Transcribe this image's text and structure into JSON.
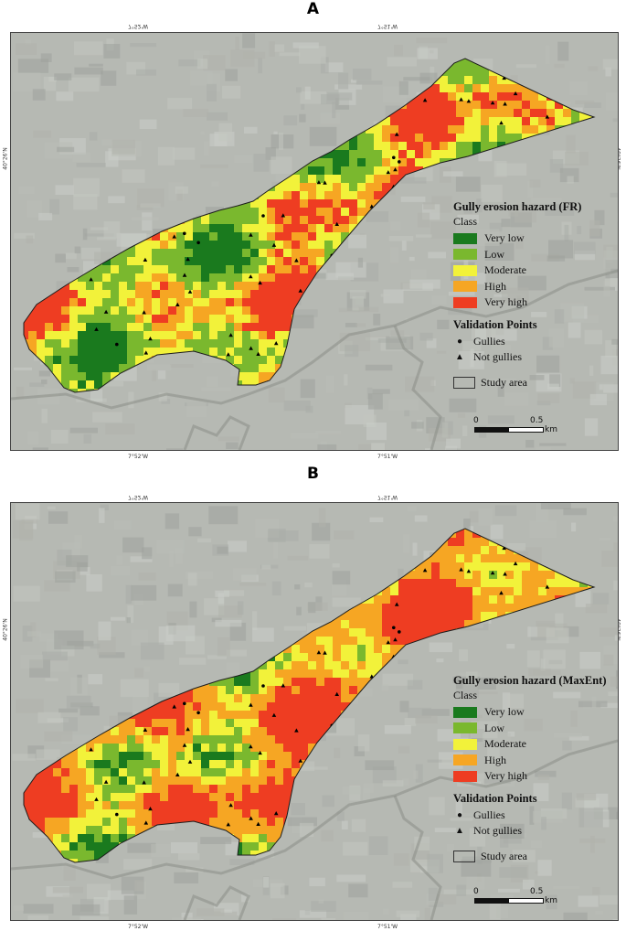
{
  "panels": [
    {
      "label": "A",
      "legend_title": "Gully erosion hazard (FR)",
      "seed": 7,
      "bias": [
        0.3,
        0.26,
        0.22,
        0.14,
        0.08
      ]
    },
    {
      "label": "B",
      "legend_title": "Gully erosion hazard (MaxEnt)",
      "seed": 19,
      "bias": [
        0.22,
        0.14,
        0.2,
        0.28,
        0.16
      ]
    }
  ],
  "class_label": "Class",
  "classes": [
    {
      "name": "Very low",
      "color": "#1a7a1e"
    },
    {
      "name": "Low",
      "color": "#7ab82e"
    },
    {
      "name": "Moderate",
      "color": "#f2f23a"
    },
    {
      "name": "High",
      "color": "#f6a623"
    },
    {
      "name": "Very high",
      "color": "#ee3d22"
    }
  ],
  "validation_title": "Validation Points",
  "validation": [
    {
      "name": "Gullies",
      "symbol": "●"
    },
    {
      "name": "Not gullies",
      "symbol": "▲"
    }
  ],
  "study_area_label": "Study area",
  "scale": {
    "zero": "0",
    "mid": "0.5",
    "unit": "km"
  },
  "ticks": {
    "top_left": "7°52'W",
    "top_right": "7°51'W",
    "side_lat": "40°26'N"
  },
  "satellite_tone": "#b6b9b3"
}
